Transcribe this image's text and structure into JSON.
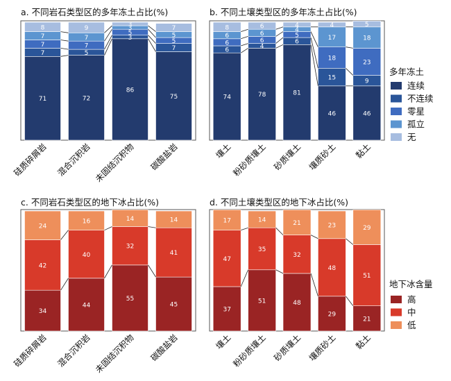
{
  "palettes": {
    "permafrost": [
      "#233b6e",
      "#2a5599",
      "#3f6cc0",
      "#5c95d0",
      "#a7bde0"
    ],
    "ice": [
      "#9a2424",
      "#d83a2a",
      "#ee8f5b"
    ]
  },
  "legends": {
    "permafrost": {
      "title": "多年冻土",
      "items": [
        "连续",
        "不连续",
        "零星",
        "孤立",
        "无"
      ]
    },
    "ice": {
      "title": "地下冰含量",
      "items": [
        "高",
        "中",
        "低"
      ]
    }
  },
  "chart_data": [
    {
      "id": "a",
      "type": "bar",
      "stacked": true,
      "title": "a. 不同岩石类型区的多年冻土占比(%)",
      "categories": [
        "硅质碎屑岩",
        "混合沉积岩",
        "未固结沉积物",
        "碳酸盐岩"
      ],
      "ylim": [
        0,
        100
      ],
      "series": [
        {
          "name": "连续",
          "values": [
            71,
            72,
            86,
            75
          ]
        },
        {
          "name": "不连续",
          "values": [
            7,
            5,
            3,
            7
          ]
        },
        {
          "name": "零星",
          "values": [
            7,
            7,
            5,
            5
          ]
        },
        {
          "name": "孤立",
          "values": [
            7,
            7,
            3,
            5
          ]
        },
        {
          "name": "无",
          "values": [
            8,
            9,
            3,
            7
          ]
        }
      ]
    },
    {
      "id": "b",
      "type": "bar",
      "stacked": true,
      "title": "b. 不同土壤类型区的多年冻土占比(%)",
      "categories": [
        "壤土",
        "粉砂质壤土",
        "砂质壤土",
        "壤质砂土",
        "黏土"
      ],
      "ylim": [
        0,
        100
      ],
      "series": [
        {
          "name": "连续",
          "values": [
            74,
            78,
            81,
            46,
            46
          ]
        },
        {
          "name": "不连续",
          "values": [
            6,
            4,
            6,
            15,
            9
          ]
        },
        {
          "name": "零星",
          "values": [
            6,
            6,
            5,
            18,
            23
          ]
        },
        {
          "name": "孤立",
          "values": [
            6,
            6,
            4,
            17,
            18
          ]
        },
        {
          "name": "无",
          "values": [
            8,
            6,
            4,
            4,
            5
          ]
        }
      ]
    },
    {
      "id": "c",
      "type": "bar",
      "stacked": true,
      "title": "c. 不同岩石类型区的地下冰占比(%)",
      "categories": [
        "硅质碎屑岩",
        "混合沉积岩",
        "未固结沉积物",
        "碳酸盐岩"
      ],
      "ylim": [
        0,
        100
      ],
      "series": [
        {
          "name": "高",
          "values": [
            34,
            44,
            55,
            45
          ]
        },
        {
          "name": "中",
          "values": [
            42,
            40,
            32,
            41
          ]
        },
        {
          "name": "低",
          "values": [
            24,
            16,
            14,
            14
          ]
        }
      ]
    },
    {
      "id": "d",
      "type": "bar",
      "stacked": true,
      "title": "d. 不同土壤类型区的地下冰占比(%)",
      "categories": [
        "壤土",
        "粉砂质壤土",
        "砂质壤土",
        "壤质砂土",
        "黏土"
      ],
      "ylim": [
        0,
        100
      ],
      "series": [
        {
          "name": "高",
          "values": [
            37,
            51,
            48,
            29,
            21
          ]
        },
        {
          "name": "中",
          "values": [
            47,
            35,
            32,
            48,
            51
          ]
        },
        {
          "name": "低",
          "values": [
            17,
            14,
            21,
            23,
            29
          ]
        }
      ]
    }
  ]
}
